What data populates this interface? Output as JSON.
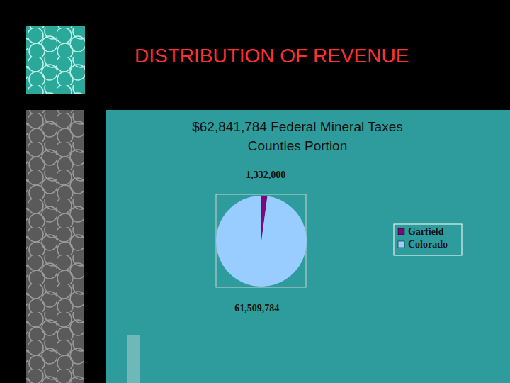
{
  "header": {
    "title": "DISTRIBUTION OF REVENUE"
  },
  "chart_data": {
    "type": "pie",
    "title": "$62,841,784 Federal Mineral Taxes",
    "subtitle": "Counties Portion",
    "categories": [
      "Garfield",
      "Colorado"
    ],
    "values": [
      1332000,
      61509784
    ],
    "value_labels": [
      "1,332,000",
      "61,509,784"
    ],
    "colors": [
      "#7a0a7a",
      "#99ccff"
    ],
    "data_labels": true,
    "legend": "right"
  }
}
